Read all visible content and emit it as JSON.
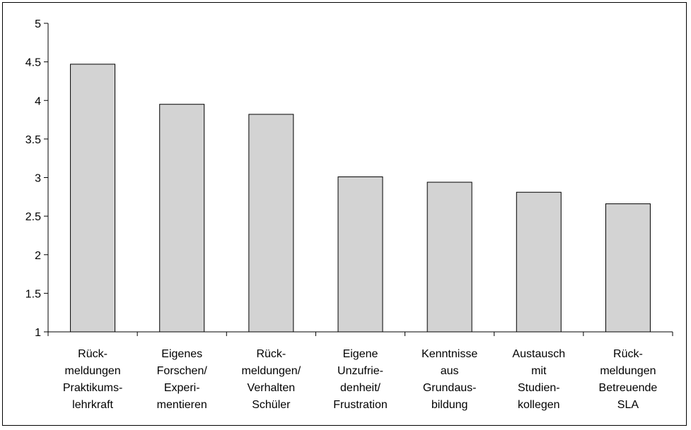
{
  "chart_data": {
    "type": "bar",
    "categories": [
      "Rück- meldungen Praktikums- lehrkraft",
      "Eigenes Forschen/ Experi- mentieren",
      "Rück- meldungen/ Verhalten Schüler",
      "Eigene Unzufrie- denheit/ Frustration",
      "Kenntnisse aus Grundaus- bildung",
      "Austausch mit Studien- kollegen",
      "Rück- meldungen Betreuende SLA"
    ],
    "category_lines": [
      [
        "Rück-",
        "meldungen",
        "Praktikums-",
        "lehrkraft"
      ],
      [
        "Eigenes",
        "Forschen/",
        "Experi-",
        "mentieren"
      ],
      [
        "Rück-",
        "meldungen/",
        "Verhalten",
        "Schüler"
      ],
      [
        "Eigene",
        "Unzufrie-",
        "denheit/",
        "Frustration"
      ],
      [
        "Kenntnisse",
        "aus",
        "Grundaus-",
        "bildung"
      ],
      [
        "Austausch",
        "mit",
        "Studien-",
        "kollegen"
      ],
      [
        "Rück-",
        "meldungen",
        "Betreuende",
        "SLA"
      ]
    ],
    "values": [
      4.47,
      3.95,
      3.82,
      3.01,
      2.94,
      2.81,
      2.66
    ],
    "title": "",
    "xlabel": "",
    "ylabel": "",
    "ylim": [
      1,
      5
    ],
    "yticks": [
      "1",
      "1.5",
      "2",
      "2.5",
      "3",
      "3.5",
      "4",
      "4.5",
      "5"
    ],
    "grid": false,
    "legend": "none",
    "bar_fill": "#d3d3d3",
    "bar_stroke": "#000000"
  }
}
